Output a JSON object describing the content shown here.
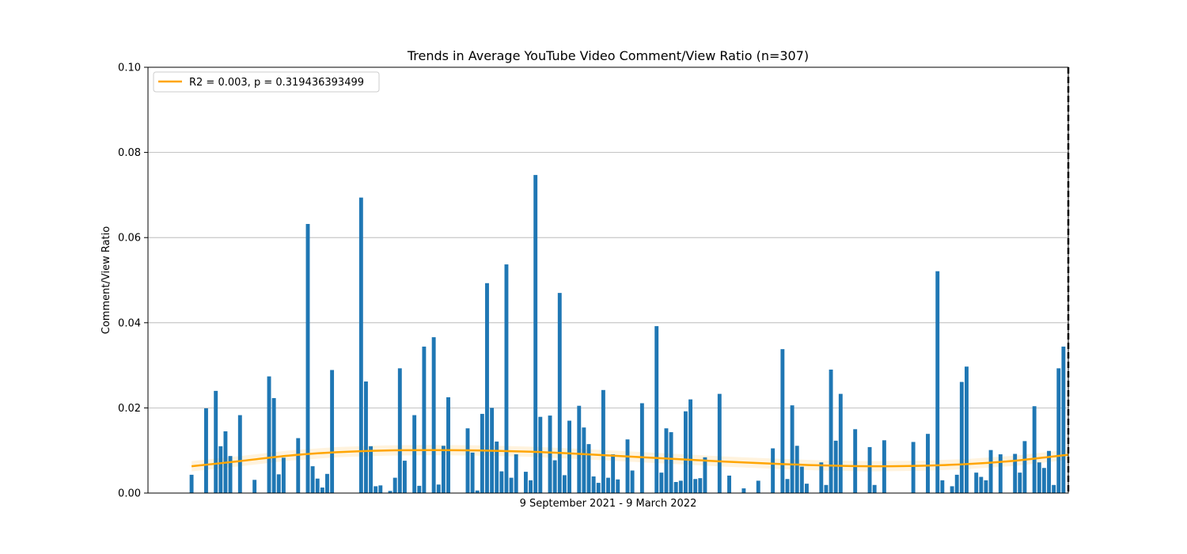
{
  "chart_data": {
    "type": "bar",
    "title": "Trends in Average YouTube Video Comment/View Ratio (n=307)",
    "xlabel": "9 September 2021 - 9 March 2022",
    "ylabel": "Comment/View Ratio",
    "ylim": [
      0,
      0.1
    ],
    "xlim": [
      -9,
      181
    ],
    "yticks": [
      0,
      0.02,
      0.04,
      0.06,
      0.08,
      0.1
    ],
    "ytick_labels": [
      "0.00",
      "0.02",
      "0.04",
      "0.06",
      "0.08",
      "0.10"
    ],
    "grid": "y",
    "legend_position": "top-left",
    "bar_color": "#1f77b4",
    "bars": [
      {
        "x": 0,
        "y": 0.0043
      },
      {
        "x": 3,
        "y": 0.0199
      },
      {
        "x": 5,
        "y": 0.024
      },
      {
        "x": 6,
        "y": 0.011
      },
      {
        "x": 7,
        "y": 0.0145
      },
      {
        "x": 8,
        "y": 0.0087
      },
      {
        "x": 10,
        "y": 0.0183
      },
      {
        "x": 13,
        "y": 0.0031
      },
      {
        "x": 16,
        "y": 0.0274
      },
      {
        "x": 17,
        "y": 0.0223
      },
      {
        "x": 18,
        "y": 0.0044
      },
      {
        "x": 19,
        "y": 0.0083
      },
      {
        "x": 22,
        "y": 0.0129
      },
      {
        "x": 24,
        "y": 0.0632
      },
      {
        "x": 25,
        "y": 0.0063
      },
      {
        "x": 26,
        "y": 0.0034
      },
      {
        "x": 27,
        "y": 0.0013
      },
      {
        "x": 28,
        "y": 0.0045
      },
      {
        "x": 29,
        "y": 0.0289
      },
      {
        "x": 35,
        "y": 0.0694
      },
      {
        "x": 36,
        "y": 0.0262
      },
      {
        "x": 37,
        "y": 0.011
      },
      {
        "x": 38,
        "y": 0.0016
      },
      {
        "x": 39,
        "y": 0.0018
      },
      {
        "x": 41,
        "y": 0.0005
      },
      {
        "x": 42,
        "y": 0.0036
      },
      {
        "x": 43,
        "y": 0.0293
      },
      {
        "x": 44,
        "y": 0.0076
      },
      {
        "x": 46,
        "y": 0.0183
      },
      {
        "x": 47,
        "y": 0.0017
      },
      {
        "x": 48,
        "y": 0.0344
      },
      {
        "x": 50,
        "y": 0.0366
      },
      {
        "x": 51,
        "y": 0.002
      },
      {
        "x": 52,
        "y": 0.0111
      },
      {
        "x": 53,
        "y": 0.0225
      },
      {
        "x": 57,
        "y": 0.0152
      },
      {
        "x": 58,
        "y": 0.0095
      },
      {
        "x": 59,
        "y": 0.0006
      },
      {
        "x": 60,
        "y": 0.0186
      },
      {
        "x": 61,
        "y": 0.0493
      },
      {
        "x": 62,
        "y": 0.02
      },
      {
        "x": 63,
        "y": 0.0121
      },
      {
        "x": 64,
        "y": 0.0051
      },
      {
        "x": 65,
        "y": 0.0537
      },
      {
        "x": 66,
        "y": 0.0036
      },
      {
        "x": 67,
        "y": 0.0091
      },
      {
        "x": 69,
        "y": 0.005
      },
      {
        "x": 70,
        "y": 0.003
      },
      {
        "x": 71,
        "y": 0.0747
      },
      {
        "x": 72,
        "y": 0.0179
      },
      {
        "x": 74,
        "y": 0.0182
      },
      {
        "x": 75,
        "y": 0.0077
      },
      {
        "x": 76,
        "y": 0.047
      },
      {
        "x": 77,
        "y": 0.0042
      },
      {
        "x": 78,
        "y": 0.017
      },
      {
        "x": 80,
        "y": 0.0205
      },
      {
        "x": 81,
        "y": 0.0154
      },
      {
        "x": 82,
        "y": 0.0115
      },
      {
        "x": 83,
        "y": 0.0039
      },
      {
        "x": 84,
        "y": 0.0024
      },
      {
        "x": 85,
        "y": 0.0242
      },
      {
        "x": 86,
        "y": 0.0036
      },
      {
        "x": 87,
        "y": 0.0091
      },
      {
        "x": 88,
        "y": 0.0032
      },
      {
        "x": 90,
        "y": 0.0126
      },
      {
        "x": 91,
        "y": 0.0053
      },
      {
        "x": 93,
        "y": 0.0211
      },
      {
        "x": 96,
        "y": 0.0392
      },
      {
        "x": 97,
        "y": 0.0048
      },
      {
        "x": 98,
        "y": 0.0152
      },
      {
        "x": 99,
        "y": 0.0143
      },
      {
        "x": 100,
        "y": 0.0026
      },
      {
        "x": 101,
        "y": 0.0029
      },
      {
        "x": 102,
        "y": 0.0192
      },
      {
        "x": 103,
        "y": 0.022
      },
      {
        "x": 104,
        "y": 0.0033
      },
      {
        "x": 105,
        "y": 0.0035
      },
      {
        "x": 106,
        "y": 0.0084
      },
      {
        "x": 109,
        "y": 0.0233
      },
      {
        "x": 111,
        "y": 0.0041
      },
      {
        "x": 114,
        "y": 0.0011
      },
      {
        "x": 117,
        "y": 0.0029
      },
      {
        "x": 120,
        "y": 0.0105
      },
      {
        "x": 122,
        "y": 0.0338
      },
      {
        "x": 123,
        "y": 0.0033
      },
      {
        "x": 124,
        "y": 0.0206
      },
      {
        "x": 125,
        "y": 0.0111
      },
      {
        "x": 126,
        "y": 0.0062
      },
      {
        "x": 127,
        "y": 0.0022
      },
      {
        "x": 130,
        "y": 0.0072
      },
      {
        "x": 131,
        "y": 0.0019
      },
      {
        "x": 132,
        "y": 0.029
      },
      {
        "x": 133,
        "y": 0.0123
      },
      {
        "x": 134,
        "y": 0.0233
      },
      {
        "x": 137,
        "y": 0.015
      },
      {
        "x": 140,
        "y": 0.0108
      },
      {
        "x": 141,
        "y": 0.0019
      },
      {
        "x": 143,
        "y": 0.0124
      },
      {
        "x": 149,
        "y": 0.012
      },
      {
        "x": 152,
        "y": 0.0139
      },
      {
        "x": 154,
        "y": 0.0521
      },
      {
        "x": 155,
        "y": 0.003
      },
      {
        "x": 157,
        "y": 0.0016
      },
      {
        "x": 158,
        "y": 0.0043
      },
      {
        "x": 159,
        "y": 0.0261
      },
      {
        "x": 160,
        "y": 0.0297
      },
      {
        "x": 162,
        "y": 0.0048
      },
      {
        "x": 163,
        "y": 0.0038
      },
      {
        "x": 164,
        "y": 0.003
      },
      {
        "x": 165,
        "y": 0.0101
      },
      {
        "x": 167,
        "y": 0.0091
      },
      {
        "x": 170,
        "y": 0.0092
      },
      {
        "x": 171,
        "y": 0.0048
      },
      {
        "x": 172,
        "y": 0.0122
      },
      {
        "x": 174,
        "y": 0.0204
      },
      {
        "x": 175,
        "y": 0.0072
      },
      {
        "x": 176,
        "y": 0.0059
      },
      {
        "x": 177,
        "y": 0.0099
      },
      {
        "x": 178,
        "y": 0.0019
      },
      {
        "x": 179,
        "y": 0.0293
      },
      {
        "x": 180,
        "y": 0.0344
      }
    ],
    "trend": {
      "label": "R2 = 0.003, p = 0.319436393499",
      "color": "#ffa500",
      "band_color": "#ffa500",
      "points": [
        {
          "x": 0,
          "y": 0.0063
        },
        {
          "x": 10,
          "y": 0.0075
        },
        {
          "x": 20,
          "y": 0.0088
        },
        {
          "x": 30,
          "y": 0.0096
        },
        {
          "x": 40,
          "y": 0.01
        },
        {
          "x": 50,
          "y": 0.0101
        },
        {
          "x": 60,
          "y": 0.01
        },
        {
          "x": 70,
          "y": 0.0097
        },
        {
          "x": 80,
          "y": 0.0092
        },
        {
          "x": 90,
          "y": 0.0086
        },
        {
          "x": 100,
          "y": 0.008
        },
        {
          "x": 110,
          "y": 0.0074
        },
        {
          "x": 120,
          "y": 0.0069
        },
        {
          "x": 130,
          "y": 0.0065
        },
        {
          "x": 140,
          "y": 0.0063
        },
        {
          "x": 150,
          "y": 0.0064
        },
        {
          "x": 160,
          "y": 0.0068
        },
        {
          "x": 170,
          "y": 0.0076
        },
        {
          "x": 181,
          "y": 0.009
        }
      ],
      "band_halfwidth": 0.0012
    },
    "reference_line": {
      "x": 181,
      "style": "dashed",
      "color": "#000000"
    }
  }
}
